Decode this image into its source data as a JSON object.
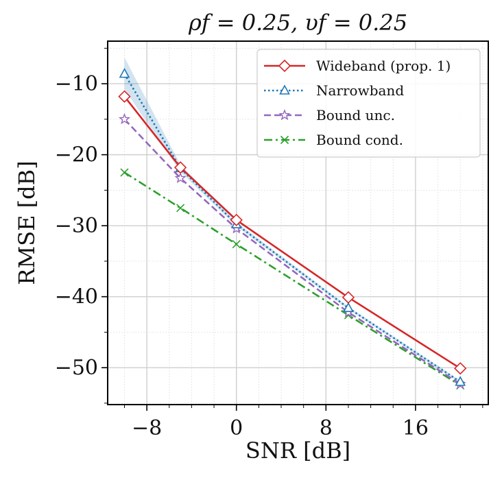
{
  "chart_data": {
    "type": "line",
    "title": "ρf = 0.25, υf = 0.25",
    "xlabel": "SNR [dB]",
    "ylabel": "RMSE [dB]",
    "xlim": [
      -11.5,
      22.5
    ],
    "ylim": [
      -55.2,
      -4.0
    ],
    "xticks": [
      -8,
      0,
      8,
      16
    ],
    "xtick_labels": [
      "−8",
      "0",
      "8",
      "16"
    ],
    "yticks": [
      -10,
      -20,
      -30,
      -40,
      -50
    ],
    "ytick_labels": [
      "−10",
      "−20",
      "−30",
      "−40",
      "−50"
    ],
    "grid": true,
    "legend_position": "top-right",
    "series": [
      {
        "name": "Wideband (prop. 1)",
        "color": "#d62728",
        "linestyle": "solid",
        "marker": "diamond",
        "x": [
          -10,
          -5,
          0,
          10,
          20
        ],
        "y": [
          -11.8,
          -21.8,
          -29.2,
          -40.1,
          -50.1
        ]
      },
      {
        "name": "Narrowband",
        "color": "#1f77b4",
        "linestyle": "dotted",
        "marker": "triangle",
        "x": [
          -10,
          -5,
          0,
          10,
          20
        ],
        "y": [
          -8.6,
          -21.9,
          -29.8,
          -41.6,
          -52.0
        ],
        "band_upper": [
          -6.3,
          -21.4,
          -29.5,
          -41.4,
          -51.8
        ],
        "band_lower": [
          -10.8,
          -22.4,
          -30.1,
          -41.8,
          -52.2
        ]
      },
      {
        "name": "Bound unc.",
        "color": "#9467bd",
        "linestyle": "dashed",
        "marker": "star",
        "x": [
          -10,
          -5,
          0,
          10,
          20
        ],
        "y": [
          -15.0,
          -23.3,
          -30.4,
          -42.2,
          -52.3
        ]
      },
      {
        "name": "Bound cond.",
        "color": "#2ca02c",
        "linestyle": "dashdot",
        "marker": "x",
        "x": [
          -10,
          -5,
          0,
          10,
          20
        ],
        "y": [
          -22.5,
          -27.5,
          -32.6,
          -42.6,
          -52.5
        ]
      }
    ]
  }
}
